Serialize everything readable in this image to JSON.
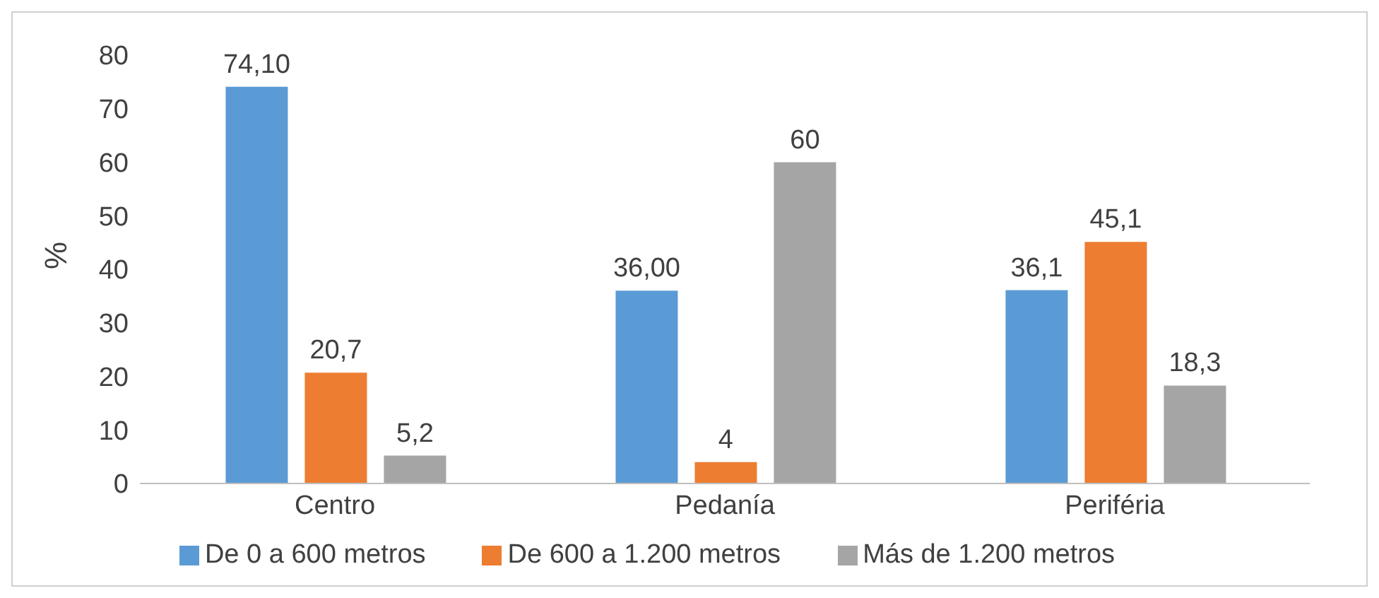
{
  "chart_data": {
    "type": "bar",
    "ylabel": "%",
    "categories": [
      "Centro",
      "Pedanía",
      "Periféria"
    ],
    "series": [
      {
        "name": "De 0 a 600 metros",
        "color": "#5b9bd5",
        "values": [
          74.1,
          36,
          36.1
        ],
        "value_labels": [
          "74,10",
          "36,00",
          "36,1"
        ]
      },
      {
        "name": "De 600 a 1.200 metros",
        "color": "#ed7d31",
        "values": [
          20.7,
          4,
          45.1
        ],
        "value_labels": [
          "20,7",
          "4",
          "45,1"
        ]
      },
      {
        "name": "Más de 1.200 metros",
        "color": "#a5a5a5",
        "values": [
          5.2,
          60,
          18.3
        ],
        "value_labels": [
          "5,2",
          "60",
          "18,3"
        ]
      }
    ],
    "ylim": [
      0,
      80
    ],
    "yticks": [
      0,
      10,
      20,
      30,
      40,
      50,
      60,
      70,
      80
    ],
    "grid": false,
    "legend": "bottom"
  }
}
